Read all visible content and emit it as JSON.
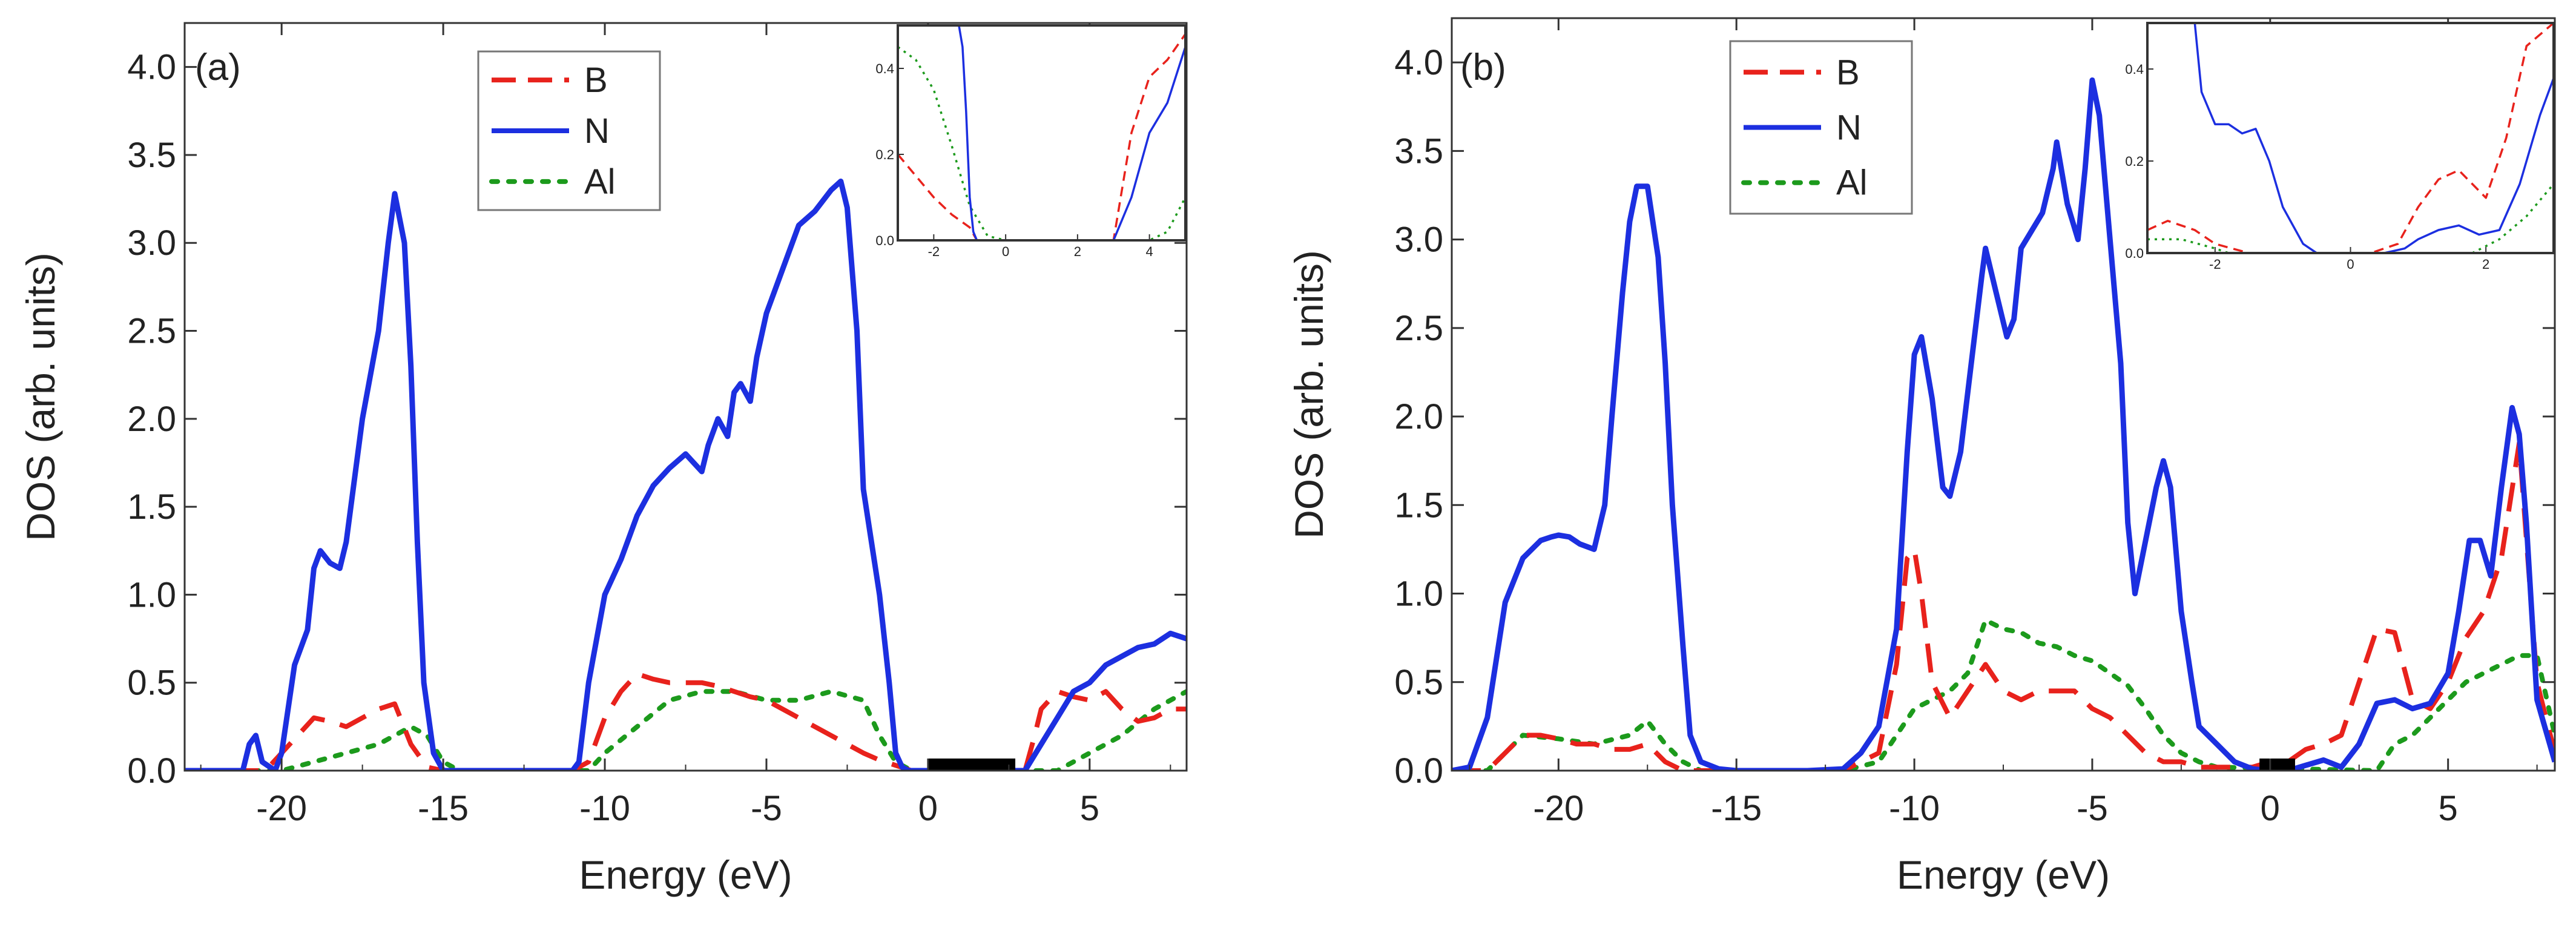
{
  "chart_data": [
    {
      "type": "line",
      "panel_label": "(a)",
      "xlabel": "Energy (eV)",
      "ylabel": "DOS (arb. units)",
      "xlim": [
        -23,
        8
      ],
      "ylim": [
        0,
        4.25
      ],
      "x_ticks": [
        -20,
        -15,
        -10,
        -5,
        0,
        5
      ],
      "x_tick_labels": [
        "-20",
        "-15",
        "-10",
        "-5",
        "0",
        "5"
      ],
      "y_ticks": [
        0,
        0.5,
        1,
        1.5,
        2,
        2.5,
        3,
        3.5,
        4
      ],
      "y_tick_labels": [
        "0.0",
        "0.5",
        "1.0",
        "1.5",
        "2.0",
        "2.5",
        "3.0",
        "3.5",
        "4.0"
      ],
      "band_gap_bar": [
        0.0,
        2.7
      ],
      "legend": {
        "position": "top-center",
        "entries": [
          "B",
          "N",
          "Al"
        ]
      },
      "series": [
        {
          "name": "B",
          "color": "#e8221c",
          "style": "dashed",
          "x": [
            -23,
            -20.5,
            -20,
            -19.5,
            -19,
            -18.5,
            -18,
            -17.5,
            -17,
            -16.5,
            -16,
            -15.5,
            -15,
            -11,
            -10.5,
            -10,
            -9.5,
            -9,
            -8.5,
            -8,
            -7.5,
            -7,
            -6.5,
            -6,
            -5.5,
            -5,
            -4.5,
            -4,
            -3.5,
            -3,
            -2.5,
            -2,
            -1.5,
            -1,
            -0.5,
            3,
            3.3,
            3.5,
            4,
            4.5,
            5,
            5.5,
            6,
            6.5,
            7,
            7.5,
            8
          ],
          "y": [
            0,
            0,
            0.1,
            0.2,
            0.3,
            0.28,
            0.25,
            0.3,
            0.35,
            0.38,
            0.15,
            0.02,
            0,
            0,
            0.05,
            0.3,
            0.45,
            0.55,
            0.52,
            0.5,
            0.5,
            0.5,
            0.48,
            0.45,
            0.42,
            0.4,
            0.35,
            0.3,
            0.25,
            0.2,
            0.15,
            0.1,
            0.06,
            0.03,
            0,
            0,
            0.2,
            0.35,
            0.45,
            0.42,
            0.4,
            0.45,
            0.35,
            0.28,
            0.3,
            0.35,
            0.35
          ]
        },
        {
          "name": "N",
          "color": "#1c2fe0",
          "style": "solid",
          "x": [
            -23,
            -21.2,
            -21,
            -20.8,
            -20.6,
            -20.2,
            -20,
            -19.6,
            -19.2,
            -19,
            -18.8,
            -18.5,
            -18.2,
            -18,
            -17.5,
            -17,
            -16.7,
            -16.5,
            -16.2,
            -16,
            -15.8,
            -15.6,
            -15.3,
            -15,
            -11,
            -10.8,
            -10.5,
            -10,
            -9.5,
            -9,
            -8.5,
            -8,
            -7.5,
            -7,
            -6.8,
            -6.5,
            -6.2,
            -6,
            -5.8,
            -5.5,
            -5.3,
            -5,
            -4.5,
            -4,
            -3.5,
            -3,
            -2.7,
            -2.5,
            -2.2,
            -2,
            -1.5,
            -1.2,
            -1,
            -0.8,
            -0.6,
            -0.4,
            0,
            3,
            3.5,
            4,
            4.5,
            5,
            5.5,
            6,
            6.5,
            7,
            7.5,
            8
          ],
          "y": [
            0,
            0,
            0.15,
            0.2,
            0.05,
            0,
            0.1,
            0.6,
            0.8,
            1.15,
            1.25,
            1.18,
            1.15,
            1.3,
            2.0,
            2.5,
            3.0,
            3.28,
            3.0,
            2.3,
            1.3,
            0.5,
            0.1,
            0,
            0,
            0.05,
            0.5,
            1.0,
            1.2,
            1.45,
            1.62,
            1.72,
            1.8,
            1.7,
            1.85,
            2.0,
            1.9,
            2.15,
            2.2,
            2.1,
            2.35,
            2.6,
            2.85,
            3.1,
            3.18,
            3.3,
            3.35,
            3.2,
            2.5,
            1.6,
            1.0,
            0.5,
            0.1,
            0.02,
            0,
            0,
            0,
            0,
            0.15,
            0.3,
            0.45,
            0.5,
            0.6,
            0.65,
            0.7,
            0.72,
            0.78,
            0.75
          ]
        },
        {
          "name": "Al",
          "color": "#1c9a1c",
          "style": "dotted",
          "x": [
            -23,
            -20,
            -19,
            -18,
            -17,
            -16,
            -15.5,
            -15,
            -14.5,
            -10.5,
            -10,
            -9,
            -8,
            -7,
            -6,
            -5,
            -4,
            -3,
            -2,
            -1.5,
            -1,
            -0.5,
            4,
            5,
            6,
            7,
            8
          ],
          "y": [
            0,
            0,
            0.05,
            0.1,
            0.15,
            0.25,
            0.2,
            0.05,
            0,
            0,
            0.1,
            0.25,
            0.4,
            0.45,
            0.45,
            0.4,
            0.4,
            0.45,
            0.4,
            0.2,
            0.05,
            0,
            0,
            0.1,
            0.2,
            0.35,
            0.45
          ]
        }
      ],
      "inset": {
        "xlim": [
          -3,
          5
        ],
        "ylim": [
          0,
          0.5
        ],
        "x_ticks": [
          -2,
          0,
          2,
          4
        ],
        "x_tick_labels": [
          "-2",
          "0",
          "2",
          "4"
        ],
        "y_ticks": [
          0,
          0.2,
          0.4
        ],
        "y_tick_labels": [
          "0.0",
          "0.2",
          "0.4"
        ],
        "series": [
          {
            "name": "B",
            "x": [
              -3,
              -2.5,
              -2,
              -1.5,
              -1,
              -0.8,
              3,
              3.5,
              4,
              4.5,
              5
            ],
            "y": [
              0.2,
              0.15,
              0.1,
              0.06,
              0.03,
              0,
              0,
              0.25,
              0.38,
              0.42,
              0.48
            ]
          },
          {
            "name": "N",
            "x": [
              -3,
              -1.4,
              -1.3,
              -1.2,
              -1.1,
              -1.0,
              -0.9,
              -0.8,
              3.0,
              3.5,
              4,
              4.5,
              5
            ],
            "y": [
              0.5,
              0.5,
              0.5,
              0.45,
              0.3,
              0.1,
              0.02,
              0,
              0,
              0.1,
              0.25,
              0.32,
              0.45
            ]
          },
          {
            "name": "Al",
            "x": [
              -3,
              -2.5,
              -2,
              -1.5,
              -1,
              -0.5,
              0,
              4,
              4.5,
              5
            ],
            "y": [
              0.45,
              0.42,
              0.35,
              0.22,
              0.08,
              0.01,
              0,
              0,
              0.02,
              0.1
            ]
          }
        ]
      }
    },
    {
      "type": "line",
      "panel_label": "(b)",
      "xlabel": "Energy (eV)",
      "ylabel": "DOS (arb. units)",
      "xlim": [
        -23,
        8
      ],
      "ylim": [
        0,
        4.25
      ],
      "x_ticks": [
        -20,
        -15,
        -10,
        -5,
        0,
        5
      ],
      "x_tick_labels": [
        "-20",
        "-15",
        "-10",
        "-5",
        "0",
        "5"
      ],
      "y_ticks": [
        0,
        0.5,
        1,
        1.5,
        2,
        2.5,
        3,
        3.5,
        4
      ],
      "y_tick_labels": [
        "0.0",
        "0.5",
        "1.0",
        "1.5",
        "2.0",
        "2.5",
        "3.0",
        "3.5",
        "4.0"
      ],
      "band_gap_bar": [
        -0.3,
        0.7
      ],
      "legend": {
        "position": "top-center",
        "entries": [
          "B",
          "N",
          "Al"
        ]
      },
      "series": [
        {
          "name": "B",
          "color": "#e8221c",
          "style": "dashed",
          "x": [
            -23,
            -22,
            -21.5,
            -21,
            -20.5,
            -20,
            -19.5,
            -19,
            -18.5,
            -18,
            -17.5,
            -17,
            -16.5,
            -16,
            -12,
            -11,
            -10.5,
            -10.2,
            -10,
            -9.8,
            -9.5,
            -9,
            -8.5,
            -8,
            -7.5,
            -7,
            -6.5,
            -6,
            -5.5,
            -5,
            -4.5,
            -4,
            -3.5,
            -3,
            -2.5,
            -2,
            -1.5,
            -1,
            -0.5,
            0,
            0.5,
            1,
            1.5,
            2,
            2.5,
            3,
            3.5,
            4,
            4.5,
            5,
            5.5,
            6,
            6.5,
            7,
            7.5,
            8
          ],
          "y": [
            0,
            0,
            0.1,
            0.2,
            0.2,
            0.18,
            0.15,
            0.15,
            0.12,
            0.12,
            0.15,
            0.05,
            0,
            0,
            0,
            0.1,
            0.6,
            1.2,
            1.25,
            1.0,
            0.5,
            0.3,
            0.45,
            0.6,
            0.45,
            0.4,
            0.45,
            0.45,
            0.45,
            0.35,
            0.3,
            0.2,
            0.1,
            0.05,
            0.05,
            0.02,
            0.02,
            0.02,
            0.02,
            0.05,
            0.05,
            0.12,
            0.15,
            0.2,
            0.5,
            0.8,
            0.78,
            0.4,
            0.35,
            0.5,
            0.75,
            0.9,
            1.2,
            1.85,
            0.5,
            0.1
          ]
        },
        {
          "name": "N",
          "color": "#1c2fe0",
          "style": "solid",
          "x": [
            -23,
            -22.5,
            -22,
            -21.5,
            -21,
            -20.5,
            -20.2,
            -20,
            -19.7,
            -19.4,
            -19,
            -18.7,
            -18.5,
            -18.2,
            -18,
            -17.8,
            -17.5,
            -17.2,
            -17,
            -16.8,
            -16.5,
            -16.3,
            -16,
            -15.5,
            -15,
            -13,
            -12,
            -11.5,
            -11,
            -10.5,
            -10.2,
            -10,
            -9.8,
            -9.5,
            -9.2,
            -9,
            -8.7,
            -8.4,
            -8.1,
            -8,
            -7.7,
            -7.4,
            -7.2,
            -7,
            -6.7,
            -6.4,
            -6.1,
            -6,
            -5.7,
            -5.4,
            -5.2,
            -5,
            -4.8,
            -4.5,
            -4.2,
            -4,
            -3.8,
            -3.5,
            -3.2,
            -3,
            -2.8,
            -2.5,
            -2.2,
            -2,
            -1.5,
            -1,
            -0.5,
            0,
            0.5,
            1,
            1.5,
            2,
            2.5,
            3,
            3.5,
            4,
            4.5,
            5,
            5.3,
            5.6,
            5.9,
            6.2,
            6.5,
            6.8,
            7.0,
            7.2,
            7.5,
            8
          ],
          "y": [
            0,
            0.02,
            0.3,
            0.95,
            1.2,
            1.3,
            1.32,
            1.33,
            1.32,
            1.28,
            1.25,
            1.5,
            2.0,
            2.7,
            3.1,
            3.3,
            3.3,
            2.9,
            2.3,
            1.5,
            0.7,
            0.2,
            0.05,
            0.01,
            0,
            0,
            0.01,
            0.1,
            0.25,
            0.8,
            1.8,
            2.35,
            2.45,
            2.1,
            1.6,
            1.55,
            1.8,
            2.3,
            2.8,
            2.95,
            2.7,
            2.45,
            2.55,
            2.95,
            3.05,
            3.15,
            3.4,
            3.55,
            3.2,
            3.0,
            3.4,
            3.9,
            3.7,
            3.0,
            2.3,
            1.4,
            1.0,
            1.3,
            1.6,
            1.75,
            1.6,
            0.9,
            0.5,
            0.25,
            0.15,
            0.05,
            0.01,
            0,
            0,
            0.03,
            0.06,
            0.02,
            0.15,
            0.38,
            0.4,
            0.35,
            0.38,
            0.55,
            0.9,
            1.3,
            1.3,
            1.1,
            1.6,
            2.05,
            1.9,
            1.4,
            0.4,
            0.05
          ]
        },
        {
          "name": "Al",
          "color": "#1c9a1c",
          "style": "dotted",
          "x": [
            -23,
            -22,
            -21.5,
            -21,
            -20,
            -19,
            -18,
            -17.5,
            -17,
            -16.5,
            -16,
            -12,
            -11,
            -10.5,
            -10,
            -9.5,
            -9,
            -8.5,
            -8,
            -7.5,
            -7,
            -6.5,
            -6,
            -5.5,
            -5,
            -4.5,
            -4,
            -3.5,
            -3,
            -2.5,
            -2,
            -1.5,
            3,
            3.5,
            4,
            4.5,
            5,
            5.5,
            6,
            6.5,
            7,
            7.5,
            8
          ],
          "y": [
            0,
            0,
            0.1,
            0.2,
            0.18,
            0.15,
            0.2,
            0.28,
            0.15,
            0.05,
            0,
            0,
            0.05,
            0.2,
            0.35,
            0.4,
            0.45,
            0.55,
            0.85,
            0.8,
            0.78,
            0.72,
            0.7,
            0.65,
            0.62,
            0.55,
            0.48,
            0.35,
            0.2,
            0.1,
            0.05,
            0.02,
            0,
            0.15,
            0.2,
            0.3,
            0.4,
            0.5,
            0.55,
            0.6,
            0.65,
            0.65,
            0.2
          ]
        }
      ],
      "inset": {
        "xlim": [
          -3,
          3
        ],
        "ylim": [
          0,
          0.5
        ],
        "x_ticks": [
          -2,
          0,
          2
        ],
        "x_tick_labels": [
          "-2",
          "0",
          "2"
        ],
        "y_ticks": [
          0,
          0.2,
          0.4
        ],
        "y_tick_labels": [
          "0.0",
          "0.2",
          "0.4"
        ],
        "series": [
          {
            "name": "B",
            "x": [
              -3,
              -2.7,
              -2.3,
              -2,
              -1.5,
              -1,
              0.3,
              0.7,
              1.0,
              1.3,
              1.6,
              1.8,
              2.0,
              2.3,
              2.6,
              3
            ],
            "y": [
              0.05,
              0.07,
              0.05,
              0.02,
              0,
              0,
              0,
              0.02,
              0.1,
              0.16,
              0.18,
              0.15,
              0.12,
              0.25,
              0.45,
              0.5
            ]
          },
          {
            "name": "N",
            "x": [
              -2.3,
              -2.2,
              -2.0,
              -1.8,
              -1.6,
              -1.4,
              -1.2,
              -1.0,
              -0.7,
              -0.5,
              0.5,
              0.8,
              1.0,
              1.3,
              1.6,
              1.9,
              2.2,
              2.5,
              2.8,
              3
            ],
            "y": [
              0.5,
              0.35,
              0.28,
              0.28,
              0.26,
              0.27,
              0.2,
              0.1,
              0.02,
              0,
              0,
              0.01,
              0.03,
              0.05,
              0.06,
              0.04,
              0.05,
              0.15,
              0.3,
              0.38
            ]
          },
          {
            "name": "Al",
            "x": [
              -3,
              -2.5,
              -2,
              -1.8,
              1.8,
              2.2,
              2.6,
              3
            ],
            "y": [
              0.03,
              0.03,
              0.01,
              0,
              0,
              0.03,
              0.08,
              0.15
            ]
          }
        ]
      }
    }
  ]
}
